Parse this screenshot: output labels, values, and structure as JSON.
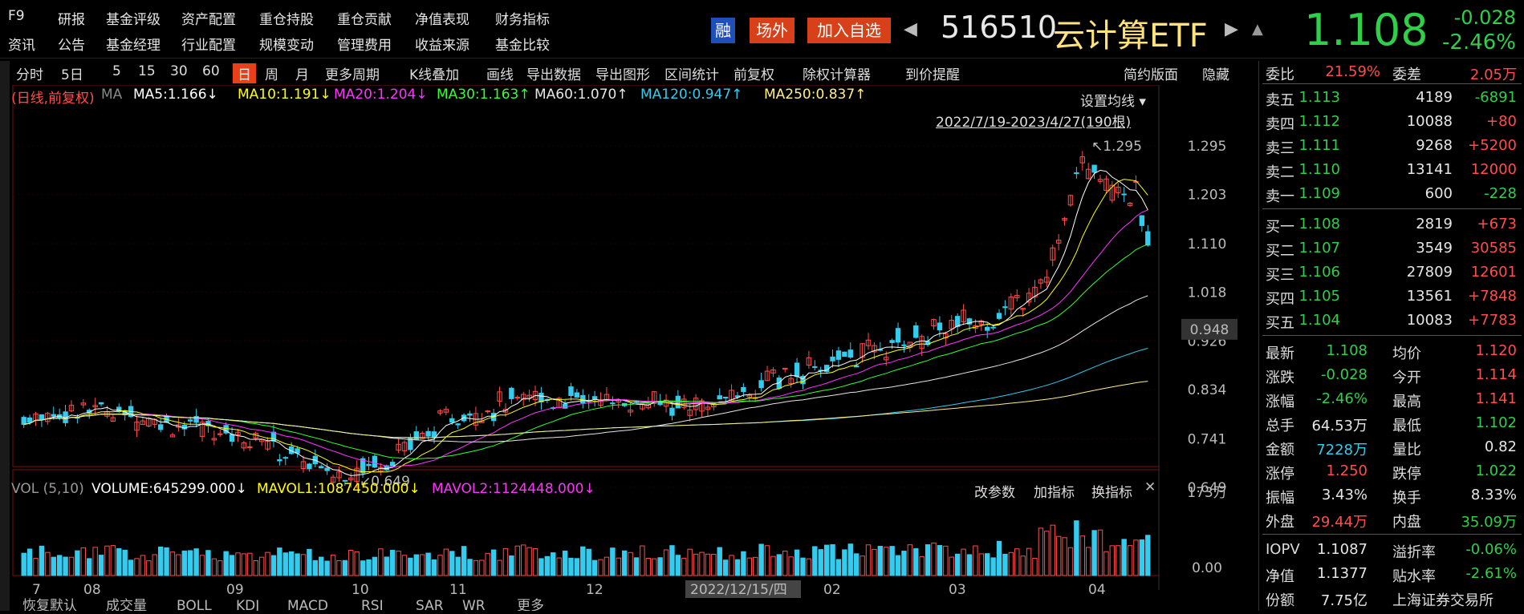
{
  "menu": {
    "row1": [
      "F9",
      "研报",
      "基金评级",
      "资产配置",
      "重仓持股",
      "重仓贡献",
      "净值表现",
      "财务指标"
    ],
    "row2": [
      "资讯",
      "公告",
      "基金经理",
      "行业配置",
      "规模变动",
      "管理费用",
      "收益来源",
      "基金比较"
    ]
  },
  "header": {
    "tag_rong": "融",
    "tag_changwai": "场外",
    "add_fav": "加入自选",
    "code": "516510",
    "name": "云计算ETF",
    "price": "1.108",
    "change": "-0.028",
    "change_pct": "-2.46%"
  },
  "toolbar": {
    "items": [
      "分时",
      "5日",
      "5",
      "15",
      "30",
      "60",
      "日",
      "周",
      "月",
      "更多周期",
      "K线叠加",
      "画线",
      "导出数据",
      "导出图形",
      "区间统计",
      "前复权",
      "除权计算器",
      "到价提醒"
    ],
    "active": "日",
    "right": [
      "简约版面",
      "隐藏"
    ]
  },
  "chart": {
    "ma_legend": [
      {
        "label": "(日线,前复权)",
        "color": "#ff4d4d"
      },
      {
        "label": "MA",
        "color": "#888888"
      },
      {
        "label": "MA5:1.166↓",
        "color": "#ffffff"
      },
      {
        "label": "MA10:1.191↓",
        "color": "#ffff00"
      },
      {
        "label": "MA20:1.204↓",
        "color": "#ff33ff"
      },
      {
        "label": "MA30:1.163↑",
        "color": "#33ff33"
      },
      {
        "label": "MA60:1.070↑",
        "color": "#e6e6e6"
      },
      {
        "label": "MA120:0.947↑",
        "color": "#33ccee"
      },
      {
        "label": "MA250:0.837↑",
        "color": "#ffee88"
      }
    ],
    "set_ma": "设置均线",
    "range": "2022/7/19-2023/4/27(190根)",
    "price_axis": [
      "1.295",
      "1.203",
      "1.110",
      "1.018",
      "0.926",
      "0.834",
      "0.741",
      "0.649"
    ],
    "cursor_price": "0.948",
    "high_mark": "1.295",
    "low_mark": "0.649",
    "vol_legend": [
      {
        "label": "VOL (5,10)",
        "color": "#999999"
      },
      {
        "label": "VOLUME:645299.000↓",
        "color": "#ffffff"
      },
      {
        "label": "MAVOL1:1087450.000↓",
        "color": "#ffff00"
      },
      {
        "label": "MAVOL2:1124448.000↓",
        "color": "#ff33ff"
      }
    ],
    "vol_buttons": [
      "改参数",
      "加指标",
      "换指标"
    ],
    "vol_axis": [
      "173万",
      "0.00"
    ],
    "x_axis": [
      "7",
      "08",
      "09",
      "10",
      "11",
      "12",
      "2022/12/15/四",
      "02",
      "03",
      "04"
    ],
    "bottom_tabs": [
      "恢复默认",
      "成交量",
      "BOLL",
      "KDJ",
      "MACD",
      "RSI",
      "SAR",
      "WR",
      "更多"
    ],
    "colors": {
      "up": "#ff4d4d",
      "down": "#33ccee"
    }
  },
  "panel": {
    "wei_bi_label": "委比",
    "wei_bi": "21.59%",
    "wei_cha_label": "委差",
    "wei_cha": "2.05万",
    "sells": [
      {
        "label": "卖五",
        "price": "1.113",
        "vol": "4189",
        "chg": "-6891"
      },
      {
        "label": "卖四",
        "price": "1.112",
        "vol": "10088",
        "chg": "+80"
      },
      {
        "label": "卖三",
        "price": "1.111",
        "vol": "9268",
        "chg": "+5200"
      },
      {
        "label": "卖二",
        "price": "1.110",
        "vol": "13141",
        "chg": "12000"
      },
      {
        "label": "卖一",
        "price": "1.109",
        "vol": "600",
        "chg": "-228"
      }
    ],
    "buys": [
      {
        "label": "买一",
        "price": "1.108",
        "vol": "2819",
        "chg": "+673"
      },
      {
        "label": "买二",
        "price": "1.107",
        "vol": "3549",
        "chg": "30585"
      },
      {
        "label": "买三",
        "price": "1.106",
        "vol": "27809",
        "chg": "12601"
      },
      {
        "label": "买四",
        "price": "1.105",
        "vol": "13561",
        "chg": "+7848"
      },
      {
        "label": "买五",
        "price": "1.104",
        "vol": "10083",
        "chg": "+7783"
      }
    ],
    "stats": [
      {
        "l1": "最新",
        "v1": "1.108",
        "c1": "g",
        "l2": "均价",
        "v2": "1.120",
        "c2": "r"
      },
      {
        "l1": "涨跌",
        "v1": "-0.028",
        "c1": "g",
        "l2": "今开",
        "v2": "1.114",
        "c2": "r"
      },
      {
        "l1": "涨幅",
        "v1": "-2.46%",
        "c1": "g",
        "l2": "最高",
        "v2": "1.141",
        "c2": "r"
      },
      {
        "l1": "总手",
        "v1": "64.53万",
        "c1": "w",
        "l2": "最低",
        "v2": "1.102",
        "c2": "g"
      },
      {
        "l1": "金额",
        "v1": "7228万",
        "c1": "c",
        "l2": "量比",
        "v2": "0.82",
        "c2": "w"
      },
      {
        "l1": "涨停",
        "v1": "1.250",
        "c1": "r",
        "l2": "跌停",
        "v2": "1.022",
        "c2": "g"
      },
      {
        "l1": "振幅",
        "v1": "3.43%",
        "c1": "w",
        "l2": "换手",
        "v2": "8.33%",
        "c2": "w"
      },
      {
        "l1": "外盘",
        "v1": "29.44万",
        "c1": "r",
        "l2": "内盘",
        "v2": "35.09万",
        "c2": "g"
      }
    ],
    "extra": [
      {
        "l1": "IOPV",
        "v1": "1.1087",
        "c1": "w",
        "l2": "溢折率",
        "v2": "-0.06%",
        "c2": "g"
      },
      {
        "l1": "净值",
        "v1": "1.1377",
        "c1": "w",
        "l2": "贴水率",
        "v2": "-2.61%",
        "c2": "g"
      },
      {
        "l1": "份额",
        "v1": "7.75亿",
        "c1": "w",
        "l2": "上海证券交易所",
        "v2": "",
        "c2": "w"
      }
    ]
  }
}
